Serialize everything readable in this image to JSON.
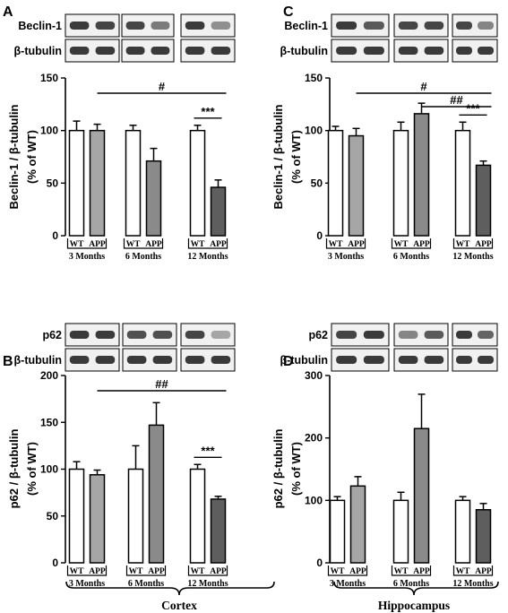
{
  "figure": {
    "colors": {
      "wt": "#ffffff",
      "app_3": "#a6a6a6",
      "app_6": "#8a8a8a",
      "app_12": "#5e5e5e",
      "stroke": "#000000"
    },
    "region_labels": {
      "left": "Cortex",
      "right": "Hippocampus"
    }
  },
  "chart_data": [
    {
      "panel": "A",
      "type": "bar",
      "blot_labels": [
        "Beclin-1",
        "β-tubulin"
      ],
      "ylabel": [
        "Beclin-1 / β-tubulin",
        "(% of WT)"
      ],
      "ylim": [
        0,
        150
      ],
      "yticks": [
        "0",
        "50",
        "100",
        "150"
      ],
      "group_labels": [
        "3 Months",
        "6 Months",
        "12 Months"
      ],
      "bar_labels": [
        "WT",
        "APP"
      ],
      "series": [
        {
          "name": "WT",
          "values": [
            100,
            100,
            100
          ],
          "errors": [
            9,
            5,
            5
          ]
        },
        {
          "name": "APP",
          "values": [
            100,
            71,
            46
          ],
          "errors": [
            6,
            12,
            7
          ]
        }
      ],
      "annotations": [
        {
          "text": "#",
          "from": [
            0,
            1
          ],
          "to": [
            2,
            1
          ]
        },
        {
          "text": "***",
          "from": [
            2,
            0
          ],
          "to": [
            2,
            1
          ]
        }
      ]
    },
    {
      "panel": "C",
      "type": "bar",
      "blot_labels": [
        "Beclin-1",
        "β-tubulin"
      ],
      "ylabel": [
        "Beclin-1 / β-tubulin",
        "(% of WT)"
      ],
      "ylim": [
        0,
        150
      ],
      "yticks": [
        "0",
        "50",
        "100",
        "150"
      ],
      "group_labels": [
        "3 Months",
        "6 Months",
        "12 Months"
      ],
      "bar_labels": [
        "WT",
        "APP"
      ],
      "series": [
        {
          "name": "WT",
          "values": [
            100,
            100,
            100
          ],
          "errors": [
            4,
            8,
            8
          ]
        },
        {
          "name": "APP",
          "values": [
            95,
            116,
            67
          ],
          "errors": [
            7,
            10,
            4
          ]
        }
      ],
      "annotations": [
        {
          "text": "#",
          "from": [
            0,
            1
          ],
          "to": [
            2,
            1
          ]
        },
        {
          "text": "##",
          "from": [
            1,
            1
          ],
          "to": [
            2,
            1
          ]
        },
        {
          "text": "***",
          "from": [
            2,
            0
          ],
          "to": [
            2,
            1
          ]
        }
      ]
    },
    {
      "panel": "B",
      "type": "bar",
      "blot_labels": [
        "p62",
        "β-tubulin"
      ],
      "ylabel": [
        "p62 / β-tubulin",
        "(% of WT)"
      ],
      "ylim": [
        0,
        200
      ],
      "yticks": [
        "0",
        "50",
        "100",
        "150",
        "200"
      ],
      "group_labels": [
        "3 Months",
        "6 Months",
        "12 Months"
      ],
      "bar_labels": [
        "WT",
        "APP"
      ],
      "series": [
        {
          "name": "WT",
          "values": [
            100,
            100,
            100
          ],
          "errors": [
            8,
            25,
            5
          ]
        },
        {
          "name": "APP",
          "values": [
            94,
            147,
            68
          ],
          "errors": [
            5,
            24,
            3
          ]
        }
      ],
      "annotations": [
        {
          "text": "##",
          "from": [
            0,
            1
          ],
          "to": [
            2,
            1
          ]
        },
        {
          "text": "***",
          "from": [
            2,
            0
          ],
          "to": [
            2,
            1
          ]
        }
      ]
    },
    {
      "panel": "D",
      "type": "bar",
      "blot_labels": [
        "p62",
        "β-tubulin"
      ],
      "ylabel": [
        "p62 / β-tubulin",
        "(% of WT)"
      ],
      "ylim": [
        0,
        300
      ],
      "yticks": [
        "0",
        "100",
        "200",
        "300"
      ],
      "group_labels": [
        "3 Months",
        "6 Months",
        "12 Months"
      ],
      "bar_labels": [
        "WT",
        "APP"
      ],
      "series": [
        {
          "name": "WT",
          "values": [
            100,
            100,
            100
          ],
          "errors": [
            6,
            13,
            6
          ]
        },
        {
          "name": "APP",
          "values": [
            123,
            215,
            85
          ],
          "errors": [
            15,
            55,
            10
          ]
        }
      ],
      "annotations": []
    }
  ]
}
